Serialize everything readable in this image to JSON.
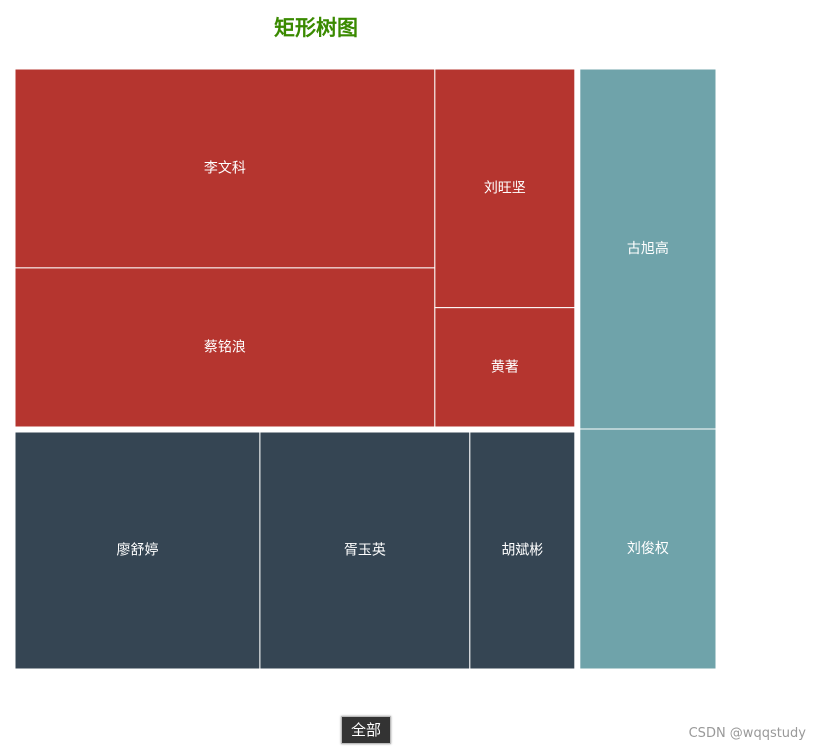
{
  "chart_data": {
    "type": "treemap",
    "title": "矩形树图",
    "breadcrumb": "全部",
    "series": [
      {
        "color": "#b5352f",
        "children": [
          {
            "name": "李文科",
            "value": 50
          },
          {
            "name": "蔡铭浪",
            "value": 40
          },
          {
            "name": "刘旺坚",
            "value": 20
          },
          {
            "name": "黄著",
            "value": 10
          }
        ]
      },
      {
        "color": "#354553",
        "children": [
          {
            "name": "廖舒婷",
            "value": 35
          },
          {
            "name": "胥玉英",
            "value": 30
          },
          {
            "name": "胡斌彬",
            "value": 15
          }
        ]
      },
      {
        "color": "#6fa3aa",
        "children": [
          {
            "name": "古旭高",
            "value": 30
          },
          {
            "name": "刘俊权",
            "value": 20
          }
        ]
      }
    ]
  },
  "watermark": "CSDN @wqqstudy"
}
